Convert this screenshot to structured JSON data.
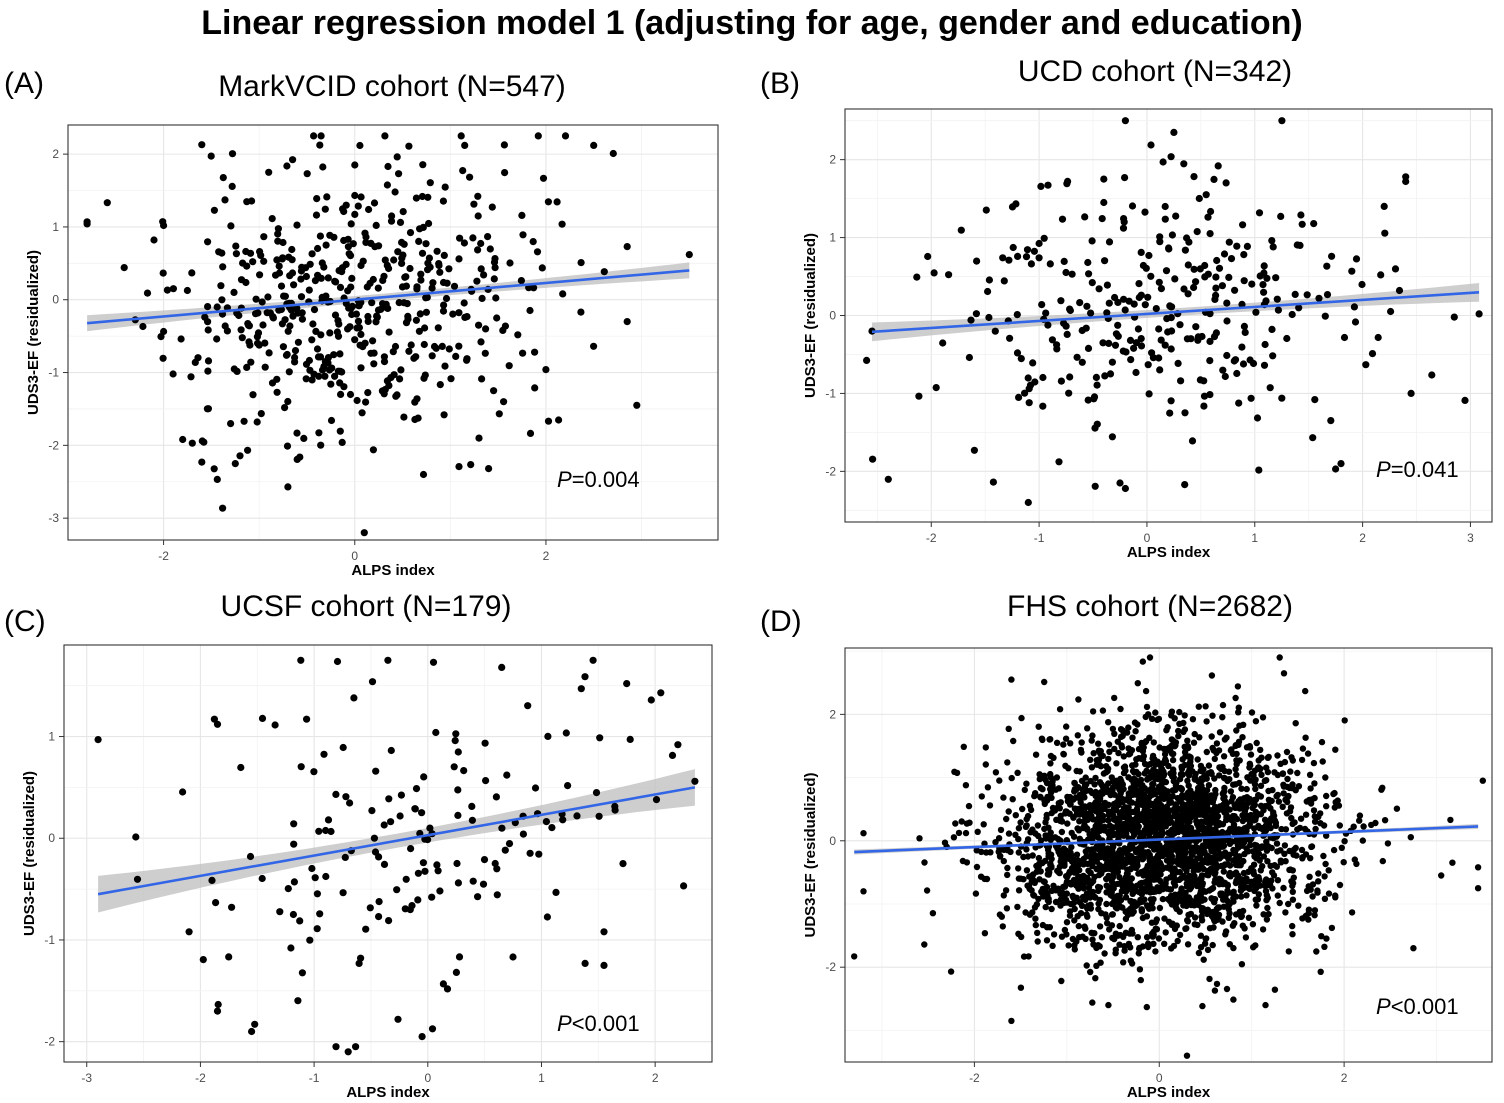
{
  "figure_title": "Linear regression model 1 (adjusting for age, gender and education)",
  "chart_data": [
    {
      "type": "scatter",
      "panel_label": "(A)",
      "title": "MarkVCID cohort (N=547)",
      "xlabel": "ALPS index",
      "ylabel": "UDS3-EF (residualized)",
      "xlim": [
        -3.0,
        3.8
      ],
      "ylim": [
        -3.3,
        2.4
      ],
      "xticks": [
        -2,
        0,
        2
      ],
      "yticks": [
        -3,
        -2,
        -1,
        0,
        1,
        2
      ],
      "grid": true,
      "n_points": 547,
      "seed": 11,
      "x_mean": -0.05,
      "x_sd": 0.95,
      "y_sd": 0.95,
      "regression": {
        "intercept": 0.0,
        "slope": 0.115,
        "x_range": [
          -2.8,
          3.5
        ],
        "ci_center_halfwidth": 0.05,
        "ci_spread": 0.06
      },
      "fit_color": "#3366e6",
      "ci_color": "#bdbdbd",
      "fixed_points": [
        [
          -2.8,
          1.07
        ],
        [
          -2.1,
          0.82
        ],
        [
          -2.0,
          1.02
        ],
        [
          -1.9,
          -1.02
        ],
        [
          -1.8,
          -1.92
        ],
        [
          -1.7,
          -1.97
        ],
        [
          -1.6,
          2.13
        ],
        [
          -1.6,
          -2.23
        ],
        [
          -1.25,
          -2.25
        ],
        [
          -0.7,
          -2.57
        ],
        [
          0.1,
          -3.2
        ],
        [
          1.15,
          2.12
        ],
        [
          1.4,
          -2.32
        ],
        [
          2.5,
          2.12
        ],
        [
          2.95,
          -1.45
        ],
        [
          3.5,
          0.62
        ],
        [
          2.85,
          0.73
        ],
        [
          2.0,
          -0.96
        ],
        [
          2.85,
          -0.3
        ],
        [
          1.3,
          -1.9
        ],
        [
          0.0,
          1.85
        ],
        [
          -0.9,
          1.75
        ]
      ],
      "p_label": "P",
      "p_value": "=0.004"
    },
    {
      "type": "scatter",
      "panel_label": "(B)",
      "title": "UCD cohort (N=342)",
      "xlabel": "ALPS index",
      "ylabel": "UDS3-EF (residualized)",
      "xlim": [
        -2.8,
        3.2
      ],
      "ylim": [
        -2.65,
        2.65
      ],
      "xticks": [
        -2,
        -1,
        0,
        1,
        2,
        3
      ],
      "yticks": [
        -2,
        -1,
        0,
        1,
        2
      ],
      "grid": true,
      "n_points": 342,
      "seed": 23,
      "x_mean": 0.05,
      "x_sd": 0.95,
      "y_sd": 0.85,
      "regression": {
        "intercept": 0.02,
        "slope": 0.09,
        "x_range": [
          -2.55,
          3.08
        ],
        "ci_center_halfwidth": 0.05,
        "ci_spread": 0.07
      },
      "fit_color": "#3366e6",
      "ci_color": "#bdbdbd",
      "fixed_points": [
        [
          -0.2,
          2.5
        ],
        [
          0.25,
          2.35
        ],
        [
          0.15,
          1.97
        ],
        [
          -0.4,
          1.75
        ],
        [
          2.4,
          1.78
        ],
        [
          2.4,
          1.72
        ],
        [
          2.2,
          1.4
        ],
        [
          3.08,
          0.02
        ],
        [
          2.85,
          -0.02
        ],
        [
          2.45,
          -1.0
        ],
        [
          1.75,
          -1.97
        ],
        [
          1.8,
          -1.9
        ],
        [
          -1.1,
          -2.4
        ],
        [
          -0.25,
          -2.15
        ],
        [
          -0.2,
          -2.22
        ],
        [
          0.35,
          -2.17
        ],
        [
          -2.55,
          -0.2
        ],
        [
          -1.6,
          -1.73
        ],
        [
          0.55,
          1.55
        ],
        [
          -0.4,
          1.45
        ]
      ],
      "p_label": "P",
      "p_value": "=0.041"
    },
    {
      "type": "scatter",
      "panel_label": "(C)",
      "title": "UCSF cohort (N=179)",
      "xlabel": "ALPS index",
      "ylabel": "UDS3-EF (residualized)",
      "xlim": [
        -3.2,
        2.5
      ],
      "ylim": [
        -2.2,
        1.9
      ],
      "xticks": [
        -3,
        -2,
        -1,
        0,
        1,
        2
      ],
      "yticks": [
        -2,
        -1,
        0,
        1
      ],
      "grid": true,
      "n_points": 179,
      "seed": 37,
      "x_mean": 0.0,
      "x_sd": 0.95,
      "y_sd": 0.8,
      "regression": {
        "intercept": 0.03,
        "slope": 0.2,
        "x_range": [
          -2.9,
          2.35
        ],
        "ci_center_halfwidth": 0.07,
        "ci_spread": 0.11
      },
      "fit_color": "#3366e6",
      "ci_color": "#bdbdbd",
      "fixed_points": [
        [
          -2.9,
          0.97
        ],
        [
          -2.1,
          -0.92
        ],
        [
          -1.85,
          -1.7
        ],
        [
          -1.55,
          -1.9
        ],
        [
          0.05,
          1.73
        ],
        [
          -0.7,
          -2.1
        ],
        [
          -0.05,
          -1.95
        ],
        [
          2.35,
          0.56
        ],
        [
          2.2,
          0.92
        ],
        [
          2.05,
          1.43
        ],
        [
          1.75,
          1.52
        ],
        [
          1.55,
          -1.25
        ],
        [
          1.55,
          -0.92
        ],
        [
          -1.85,
          1.12
        ],
        [
          -0.65,
          1.38
        ],
        [
          0.65,
          1.68
        ],
        [
          1.35,
          1.47
        ]
      ],
      "p_label": "P",
      "p_value": "<0.001"
    },
    {
      "type": "scatter",
      "panel_label": "(D)",
      "title": "FHS cohort (N=2682)",
      "xlabel": "ALPS index",
      "ylabel": "UDS3-EF (residualized)",
      "xlim": [
        -3.4,
        3.6
      ],
      "ylim": [
        -3.5,
        3.05
      ],
      "xticks": [
        -2,
        0,
        2
      ],
      "yticks": [
        -2,
        0,
        2
      ],
      "grid": true,
      "n_points": 2682,
      "seed": 51,
      "x_mean": 0.0,
      "x_sd": 0.85,
      "y_sd": 0.85,
      "regression": {
        "intercept": 0.02,
        "slope": 0.06,
        "x_range": [
          -3.3,
          3.45
        ],
        "ci_center_halfwidth": 0.02,
        "ci_spread": 0.02
      },
      "fit_color": "#3366e6",
      "ci_color": "#bdbdbd",
      "fixed_points": [
        [
          -3.3,
          -1.83
        ],
        [
          -3.2,
          0.12
        ],
        [
          -3.2,
          -0.8
        ],
        [
          -1.6,
          2.55
        ],
        [
          -0.1,
          2.9
        ],
        [
          1.35,
          2.65
        ],
        [
          0.3,
          -3.4
        ],
        [
          -0.55,
          -2.6
        ],
        [
          -1.6,
          -2.85
        ],
        [
          3.5,
          0.95
        ],
        [
          3.45,
          -0.75
        ],
        [
          3.45,
          -0.42
        ],
        [
          3.05,
          -0.55
        ],
        [
          2.75,
          -1.7
        ],
        [
          1.15,
          -2.6
        ]
      ],
      "p_label": "P",
      "p_value": "<0.001"
    }
  ]
}
